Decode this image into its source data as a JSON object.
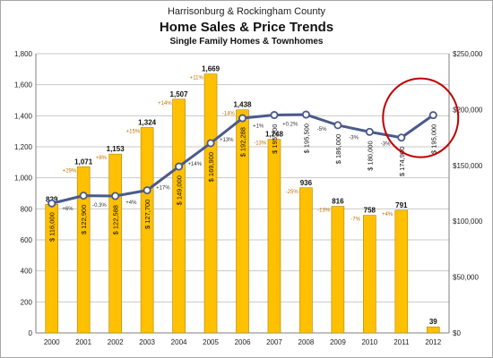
{
  "chart_data": {
    "type": "bar",
    "title": "Home Sales & Price Trends",
    "pretitle": "Harrisonburg & Rockingham County",
    "subtitle": "Single Family Homes & Townhomes",
    "categories": [
      "2000",
      "2001",
      "2002",
      "2003",
      "2004",
      "2005",
      "2006",
      "2007",
      "2008",
      "2009",
      "2010",
      "2011",
      "2012"
    ],
    "y_left": {
      "min": 0,
      "max": 1800,
      "ticks": [
        "0",
        "200",
        "400",
        "600",
        "800",
        "1,000",
        "1,200",
        "1,400",
        "1,600",
        "1,800"
      ]
    },
    "y_right": {
      "min": 0,
      "max": 250000,
      "ticks": [
        "$0",
        "$50,000",
        "$100,000",
        "$150,000",
        "$200,000",
        "$250,000"
      ]
    },
    "series": [
      {
        "kind": "bar",
        "axis": "left",
        "values": [
          829,
          1071,
          1153,
          1324,
          1507,
          1669,
          1438,
          1248,
          936,
          816,
          758,
          791,
          39
        ],
        "value_labels": [
          "829",
          "1,071",
          "1,153",
          "1,324",
          "1,507",
          "1,669",
          "1,438",
          "1,248",
          "936",
          "816",
          "758",
          "791",
          "39"
        ],
        "change_labels": [
          "",
          "+29%",
          "+8%",
          "+15%",
          "+14%",
          "+11%",
          "-14%",
          "-13%",
          "-25%",
          "-13%",
          "-7%",
          "+4%",
          ""
        ],
        "color": "#ffc000"
      },
      {
        "kind": "line",
        "axis": "right",
        "values": [
          116000,
          122900,
          122588,
          127700,
          149000,
          169900,
          192288,
          195100,
          195500,
          186000,
          180000,
          174900,
          195000
        ],
        "value_labels": [
          "$ 116,000",
          "$ 122,900",
          "$ 122,588",
          "$ 127,700",
          "$ 149,000",
          "$ 169,900",
          "$ 192,288",
          "$ 195,100",
          "$ 195,500",
          "$ 186,000",
          "$ 180,000",
          "$ 174,900",
          "$ 195,000"
        ],
        "change_labels": [
          "",
          "+6%",
          "-0.3%",
          "+4%",
          "+17%",
          "+14%",
          "+13%",
          "+1%",
          "+0.2%",
          "-5%",
          "-3%",
          "-3%",
          ""
        ],
        "color": "#4a5a8c"
      }
    ],
    "annotation": {
      "type": "circle",
      "around_category": "2012",
      "color": "#c00000"
    },
    "grid": true,
    "legend": "none"
  }
}
